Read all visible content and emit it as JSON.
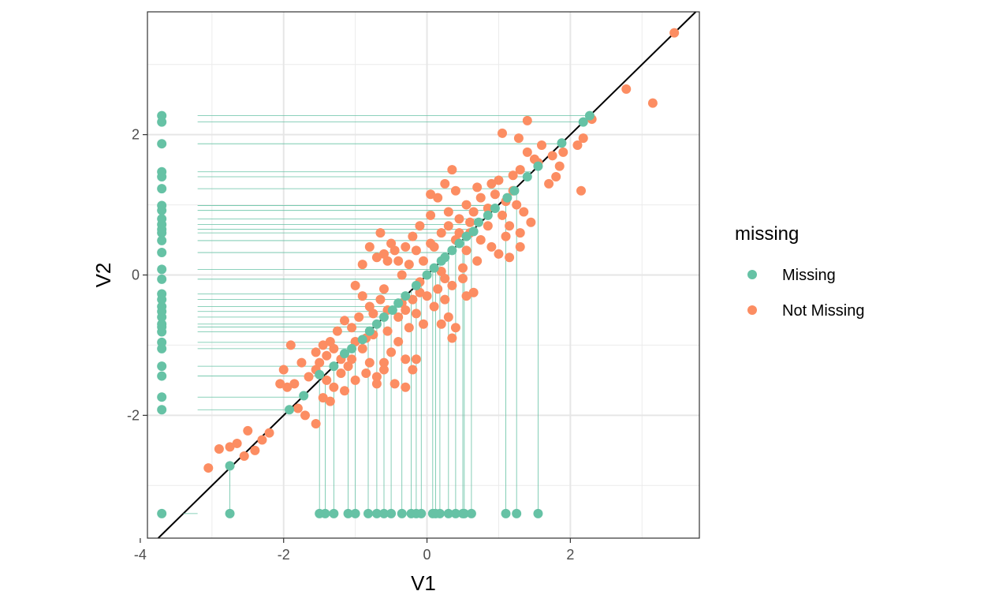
{
  "chart_data": {
    "type": "scatter",
    "xlabel": "V1",
    "ylabel": "V2",
    "xlim": [
      -3.9,
      3.8
    ],
    "ylim": [
      -3.75,
      3.75
    ],
    "x_ticks": [
      {
        "value": -4,
        "label": "-4"
      },
      {
        "value": -2,
        "label": "-2"
      },
      {
        "value": 0,
        "label": "0"
      },
      {
        "value": 2,
        "label": "2"
      }
    ],
    "y_ticks": [
      {
        "value": -2,
        "label": "-2"
      },
      {
        "value": 0,
        "label": "0"
      },
      {
        "value": 2,
        "label": "2"
      }
    ],
    "grid": true,
    "reference_line": {
      "slope": 1,
      "intercept": 0
    },
    "missing_positions": {
      "x_placeholder": -3.7,
      "y_placeholder": -3.4,
      "segment_start_x": -3.2
    },
    "legend": {
      "title": "missing",
      "placement": "right",
      "entries": [
        {
          "label": "Missing",
          "color": "#66C2A5"
        },
        {
          "label": "Not Missing",
          "color": "#FC8D62"
        }
      ]
    },
    "series": [
      {
        "name": "Not Missing",
        "color": "#FC8D62",
        "points": [
          [
            3.45,
            3.45
          ],
          [
            2.78,
            2.65
          ],
          [
            3.15,
            2.45
          ],
          [
            2.3,
            2.22
          ],
          [
            2.18,
            1.95
          ],
          [
            2.1,
            1.85
          ],
          [
            2.15,
            1.2
          ],
          [
            1.9,
            1.75
          ],
          [
            1.85,
            1.55
          ],
          [
            1.8,
            1.4
          ],
          [
            1.7,
            1.3
          ],
          [
            1.75,
            1.7
          ],
          [
            1.5,
            1.65
          ],
          [
            1.4,
            2.2
          ],
          [
            1.3,
            1.5
          ],
          [
            1.05,
            2.02
          ],
          [
            1.28,
            1.95
          ],
          [
            1.4,
            1.75
          ],
          [
            1.6,
            1.85
          ],
          [
            1.55,
            1.6
          ],
          [
            1.2,
            1.42
          ],
          [
            1.0,
            1.35
          ],
          [
            0.9,
            1.3
          ],
          [
            0.95,
            1.15
          ],
          [
            1.1,
            1.05
          ],
          [
            1.25,
            1.0
          ],
          [
            1.35,
            0.9
          ],
          [
            1.45,
            0.75
          ],
          [
            1.3,
            0.6
          ],
          [
            1.15,
            0.7
          ],
          [
            1.05,
            0.85
          ],
          [
            0.85,
            0.95
          ],
          [
            0.75,
            1.1
          ],
          [
            0.65,
            0.9
          ],
          [
            0.55,
            1.0
          ],
          [
            0.45,
            0.8
          ],
          [
            0.4,
            1.2
          ],
          [
            0.35,
            1.5
          ],
          [
            0.25,
            1.3
          ],
          [
            0.15,
            1.1
          ],
          [
            0.05,
            1.15
          ],
          [
            0.3,
            0.9
          ],
          [
            0.6,
            0.6
          ],
          [
            0.75,
            0.5
          ],
          [
            0.9,
            0.4
          ],
          [
            1.0,
            0.3
          ],
          [
            1.15,
            0.25
          ],
          [
            1.3,
            0.4
          ],
          [
            1.1,
            0.55
          ],
          [
            0.7,
            0.2
          ],
          [
            0.5,
            0.1
          ],
          [
            0.55,
            0.35
          ],
          [
            0.4,
            0.5
          ],
          [
            0.3,
            0.7
          ],
          [
            0.2,
            0.6
          ],
          [
            0.05,
            0.85
          ],
          [
            -0.1,
            0.7
          ],
          [
            -0.2,
            0.55
          ],
          [
            -0.3,
            0.4
          ],
          [
            -0.4,
            0.2
          ],
          [
            -0.5,
            0.45
          ],
          [
            -0.6,
            0.3
          ],
          [
            -0.7,
            0.25
          ],
          [
            -0.8,
            0.4
          ],
          [
            -0.9,
            0.15
          ],
          [
            -0.65,
            0.6
          ],
          [
            -0.55,
            0.2
          ],
          [
            -0.35,
            0.0
          ],
          [
            -0.25,
            0.15
          ],
          [
            -0.15,
            0.35
          ],
          [
            -0.05,
            0.2
          ],
          [
            0.1,
            0.4
          ],
          [
            0.2,
            0.05
          ],
          [
            0.35,
            -0.15
          ],
          [
            0.5,
            -0.05
          ],
          [
            0.65,
            -0.25
          ],
          [
            0.55,
            -0.3
          ],
          [
            0.25,
            -0.35
          ],
          [
            0.1,
            -0.45
          ],
          [
            0.0,
            -0.3
          ],
          [
            -0.1,
            -0.25
          ],
          [
            -0.2,
            -0.35
          ],
          [
            -0.3,
            -0.5
          ],
          [
            -0.15,
            -0.55
          ],
          [
            0.3,
            -0.6
          ],
          [
            0.4,
            -0.75
          ],
          [
            0.35,
            -0.9
          ],
          [
            0.2,
            -0.7
          ],
          [
            -0.05,
            -0.7
          ],
          [
            -0.4,
            -0.6
          ],
          [
            -0.55,
            -0.5
          ],
          [
            -0.65,
            -0.35
          ],
          [
            -0.75,
            -0.55
          ],
          [
            -0.8,
            -0.45
          ],
          [
            -0.9,
            -0.3
          ],
          [
            -1.0,
            -0.15
          ],
          [
            -0.95,
            -0.6
          ],
          [
            -1.05,
            -0.75
          ],
          [
            -1.15,
            -0.65
          ],
          [
            -1.25,
            -0.8
          ],
          [
            -1.35,
            -0.95
          ],
          [
            -1.45,
            -1.0
          ],
          [
            -1.55,
            -1.1
          ],
          [
            -1.5,
            -1.25
          ],
          [
            -1.4,
            -1.15
          ],
          [
            -1.3,
            -1.05
          ],
          [
            -1.2,
            -1.2
          ],
          [
            -1.1,
            -1.3
          ],
          [
            -1.0,
            -0.95
          ],
          [
            -0.9,
            -1.05
          ],
          [
            -0.8,
            -1.25
          ],
          [
            -0.7,
            -1.45
          ],
          [
            -0.6,
            -1.25
          ],
          [
            -0.5,
            -1.1
          ],
          [
            -0.4,
            -0.95
          ],
          [
            -0.3,
            -1.2
          ],
          [
            -0.2,
            -1.35
          ],
          [
            -0.55,
            -0.8
          ],
          [
            -0.25,
            -0.75
          ],
          [
            -1.75,
            -1.25
          ],
          [
            -1.65,
            -1.45
          ],
          [
            -1.55,
            -1.35
          ],
          [
            -1.4,
            -1.5
          ],
          [
            -1.3,
            -1.6
          ],
          [
            -1.2,
            -1.4
          ],
          [
            -1.05,
            -1.2
          ],
          [
            -1.45,
            -1.75
          ],
          [
            -1.35,
            -1.8
          ],
          [
            -1.15,
            -1.65
          ],
          [
            -1.0,
            -1.5
          ],
          [
            -0.85,
            -1.4
          ],
          [
            -0.7,
            -1.55
          ],
          [
            -0.6,
            -1.35
          ],
          [
            -0.45,
            -1.55
          ],
          [
            -0.3,
            -1.6
          ],
          [
            -0.15,
            -1.2
          ],
          [
            -1.85,
            -1.55
          ],
          [
            -1.95,
            -1.6
          ],
          [
            -2.05,
            -1.55
          ],
          [
            -1.8,
            -1.9
          ],
          [
            -1.7,
            -2.0
          ],
          [
            -1.55,
            -2.12
          ],
          [
            -1.9,
            -1.0
          ],
          [
            -2.0,
            -1.35
          ],
          [
            -2.2,
            -2.25
          ],
          [
            -2.3,
            -2.35
          ],
          [
            -2.4,
            -2.5
          ],
          [
            -2.5,
            -2.22
          ],
          [
            -2.55,
            -2.58
          ],
          [
            -2.65,
            -2.4
          ],
          [
            -2.75,
            -2.45
          ],
          [
            -2.9,
            -2.48
          ],
          [
            -3.05,
            -2.75
          ],
          [
            -0.1,
            -0.1
          ],
          [
            0.15,
            -0.2
          ],
          [
            0.45,
            0.6
          ],
          [
            0.85,
            0.7
          ],
          [
            -0.45,
            0.35
          ],
          [
            0.6,
            0.75
          ],
          [
            1.2,
            1.2
          ],
          [
            -0.85,
            -0.9
          ],
          [
            -0.35,
            -0.4
          ],
          [
            0.25,
            -0.05
          ],
          [
            0.05,
            0.45
          ],
          [
            -0.6,
            -0.2
          ],
          [
            0.7,
            1.25
          ],
          [
            -0.75,
            -0.85
          ]
        ]
      },
      {
        "name": "Missing",
        "color": "#66C2A5",
        "points": [
          [
            -2.75,
            -2.72
          ],
          [
            -2.75,
            -3.4
          ],
          [
            -1.92,
            -1.92
          ],
          [
            -1.72,
            -1.72
          ],
          [
            -1.5,
            -3.4
          ],
          [
            -1.5,
            -1.42
          ],
          [
            -1.42,
            -3.4
          ],
          [
            -1.3,
            -3.4
          ],
          [
            -1.3,
            -1.3
          ],
          [
            -1.15,
            -1.12
          ],
          [
            -1.1,
            -3.4
          ],
          [
            -1.05,
            -1.05
          ],
          [
            -1.0,
            -3.4
          ],
          [
            -0.9,
            -0.92
          ],
          [
            -0.82,
            -3.4
          ],
          [
            -0.8,
            -0.8
          ],
          [
            -0.7,
            -3.4
          ],
          [
            -0.7,
            -0.7
          ],
          [
            -0.6,
            -3.4
          ],
          [
            -0.6,
            -0.6
          ],
          [
            -0.5,
            -3.4
          ],
          [
            -0.48,
            -0.5
          ],
          [
            -0.4,
            -0.4
          ],
          [
            -0.3,
            -0.3
          ],
          [
            -0.22,
            -3.4
          ],
          [
            -0.15,
            -3.4
          ],
          [
            -0.15,
            -0.15
          ],
          [
            -0.08,
            -3.4
          ],
          [
            0.0,
            0.0
          ],
          [
            0.08,
            -3.4
          ],
          [
            0.1,
            0.1
          ],
          [
            0.18,
            -3.4
          ],
          [
            0.2,
            0.2
          ],
          [
            0.25,
            0.25
          ],
          [
            0.3,
            -3.4
          ],
          [
            0.35,
            0.35
          ],
          [
            0.4,
            -3.4
          ],
          [
            0.45,
            0.45
          ],
          [
            0.5,
            -3.4
          ],
          [
            0.55,
            0.55
          ],
          [
            0.62,
            -3.4
          ],
          [
            0.65,
            0.62
          ],
          [
            0.72,
            0.75
          ],
          [
            0.85,
            0.85
          ],
          [
            0.95,
            0.95
          ],
          [
            1.1,
            -3.4
          ],
          [
            1.12,
            1.1
          ],
          [
            1.22,
            1.2
          ],
          [
            1.25,
            -3.4
          ],
          [
            1.4,
            1.4
          ],
          [
            1.55,
            1.55
          ],
          [
            1.55,
            -3.4
          ],
          [
            1.88,
            1.88
          ],
          [
            2.18,
            2.18
          ],
          [
            2.27,
            2.27
          ],
          [
            0.12,
            -3.4
          ],
          [
            0.52,
            -3.4
          ],
          [
            -0.35,
            -3.4
          ],
          [
            -3.7,
            2.27
          ],
          [
            -3.7,
            2.18
          ],
          [
            -3.7,
            1.87
          ],
          [
            -3.7,
            1.47
          ],
          [
            -3.7,
            1.4
          ],
          [
            -3.7,
            1.23
          ],
          [
            -3.7,
            0.99
          ],
          [
            -3.7,
            0.92
          ],
          [
            -3.7,
            0.8
          ],
          [
            -3.7,
            0.72
          ],
          [
            -3.7,
            0.65
          ],
          [
            -3.7,
            0.6
          ],
          [
            -3.7,
            0.49
          ],
          [
            -3.7,
            0.32
          ],
          [
            -3.7,
            0.08
          ],
          [
            -3.7,
            -0.06
          ],
          [
            -3.7,
            -0.27
          ],
          [
            -3.7,
            -0.35
          ],
          [
            -3.7,
            -0.45
          ],
          [
            -3.7,
            -0.52
          ],
          [
            -3.7,
            -0.6
          ],
          [
            -3.7,
            -0.7
          ],
          [
            -3.7,
            -0.74
          ],
          [
            -3.7,
            -0.81
          ],
          [
            -3.7,
            -0.96
          ],
          [
            -3.7,
            -1.05
          ],
          [
            -3.7,
            -1.3
          ],
          [
            -3.7,
            -1.44
          ],
          [
            -3.7,
            -1.74
          ],
          [
            -3.7,
            -1.92
          ],
          [
            -3.7,
            -3.4
          ]
        ]
      }
    ]
  }
}
